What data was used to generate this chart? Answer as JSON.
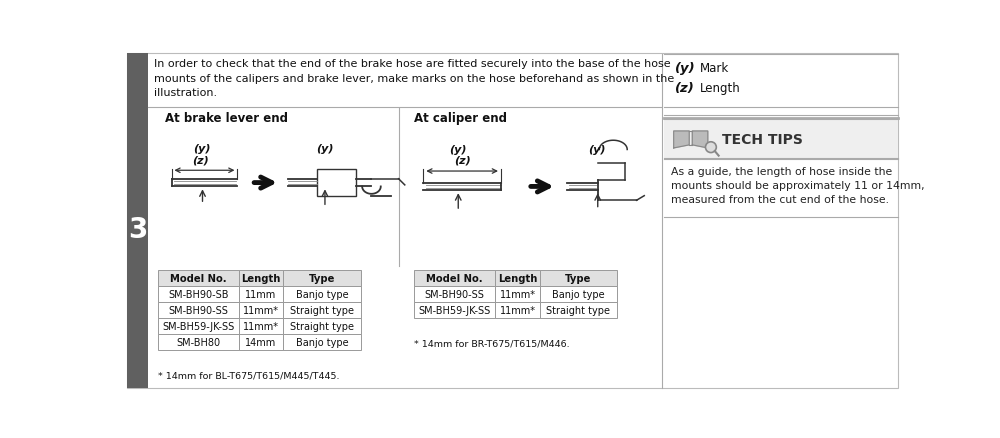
{
  "bg_color": "#ffffff",
  "sidebar_color": "#606060",
  "step_number": "3",
  "intro_text": "In order to check that the end of the brake hose are fitted securely into the base of the hose\nmounts of the calipers and brake lever, make marks on the hose beforehand as shown in the\nillustration.",
  "brake_lever_title": "At brake lever end",
  "caliper_title": "At caliper end",
  "table1_headers": [
    "Model No.",
    "Length",
    "Type"
  ],
  "table1_rows": [
    [
      "SM-BH90-SB",
      "11mm",
      "Banjo type"
    ],
    [
      "SM-BH90-SS",
      "11mm*",
      "Straight type"
    ],
    [
      "SM-BH59-JK-SS",
      "11mm*",
      "Straight type"
    ],
    [
      "SM-BH80",
      "14mm",
      "Banjo type"
    ]
  ],
  "table1_footnote": "* 14mm for BL-T675/T615/M445/T445.",
  "table2_headers": [
    "Model No.",
    "Length",
    "Type"
  ],
  "table2_rows": [
    [
      "SM-BH90-SS",
      "11mm*",
      "Banjo type"
    ],
    [
      "SM-BH59-JK-SS",
      "11mm*",
      "Straight type"
    ]
  ],
  "table2_footnote": "* 14mm for BR-T675/T615/M446.",
  "table_header_bg": "#e0e0e0",
  "table_border_color": "#999999",
  "tech_tips_bg": "#efefef",
  "tech_tips_title": "TECH TIPS",
  "tech_tips_text": "As a guide, the length of hose inside the\nmounts should be approximately 11 or 14mm,\nmeasured from the cut end of the hose.",
  "legend_y_bold": "(y)",
  "legend_y_text": "Mark",
  "legend_z_bold": "(z)",
  "legend_z_text": "Length",
  "divider_color": "#aaaaaa",
  "border_color": "#bbbbbb"
}
